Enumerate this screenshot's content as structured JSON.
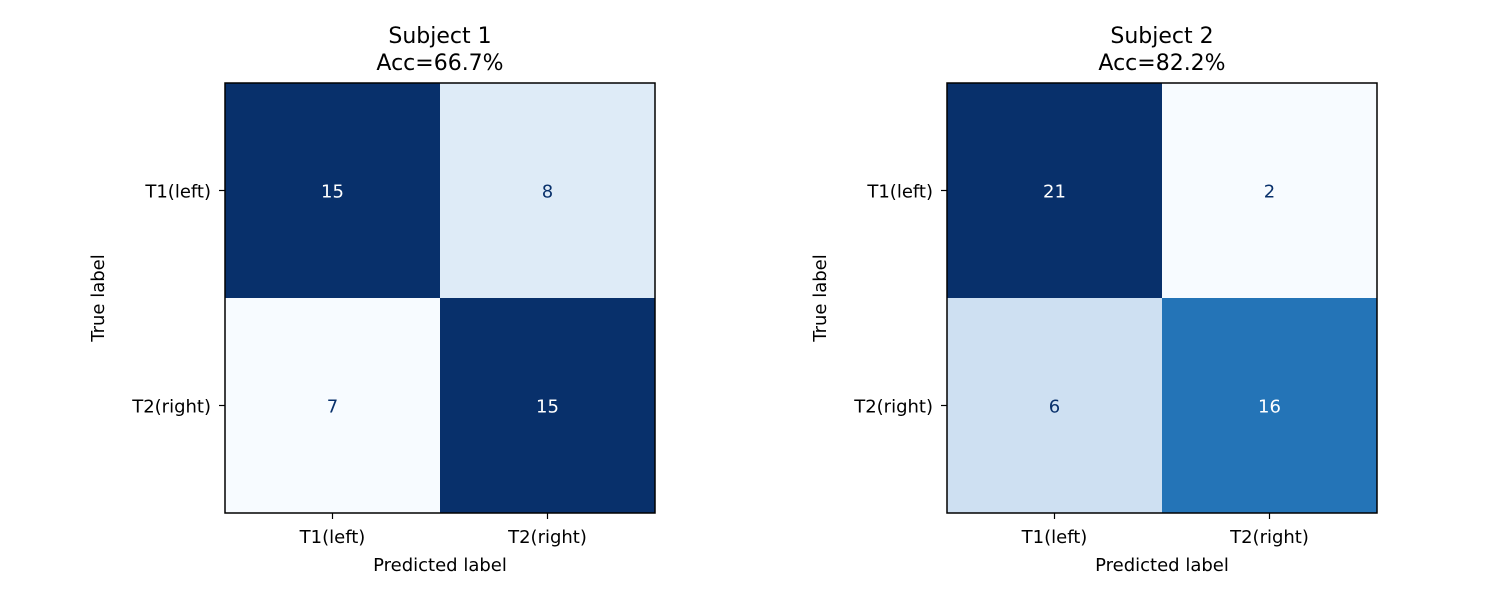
{
  "chart_data": [
    {
      "type": "heatmap",
      "title_line1": "Subject 1",
      "title_line2": "Acc=66.7%",
      "xlabel": "Predicted label",
      "ylabel": "True label",
      "x_categories": [
        "T1(left)",
        "T2(right)"
      ],
      "y_categories": [
        "T1(left)",
        "T2(right)"
      ],
      "matrix": [
        [
          15,
          8
        ],
        [
          7,
          15
        ]
      ],
      "colormap": "Blues",
      "colorbar": false,
      "grid": false
    },
    {
      "type": "heatmap",
      "title_line1": "Subject 2",
      "title_line2": "Acc=82.2%",
      "xlabel": "Predicted label",
      "ylabel": "True label",
      "x_categories": [
        "T1(left)",
        "T2(right)"
      ],
      "y_categories": [
        "T1(left)",
        "T2(right)"
      ],
      "matrix": [
        [
          21,
          2
        ],
        [
          6,
          16
        ]
      ],
      "colormap": "Blues",
      "colorbar": false,
      "grid": false
    }
  ],
  "colors": {
    "cmap_low": "#f7fbff",
    "cmap_high": "#08306b",
    "text_light": "#ffffff",
    "text_dark": "#08306b"
  }
}
